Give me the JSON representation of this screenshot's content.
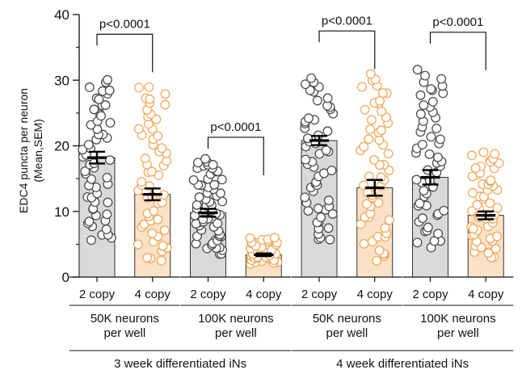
{
  "chart_data": {
    "type": "bar",
    "ylabel_lines": [
      "EDC4 puncta per neuron",
      "(Mean,SEM)"
    ],
    "ylim": [
      0,
      40
    ],
    "yticks": [
      0,
      10,
      20,
      30,
      40
    ],
    "colors": {
      "2 copy": {
        "bar": "#d9d9d9",
        "point_fill": "#ffffff",
        "point_edge": "#4d4d4d"
      },
      "4 copy": {
        "bar": "#fbe2c6",
        "point_fill": "#ffffff",
        "point_edge": "#f3a75b"
      }
    },
    "categories": [
      "2 copy",
      "4 copy",
      "2 copy",
      "4 copy",
      "2 copy",
      "4 copy",
      "2 copy",
      "4 copy"
    ],
    "values": [
      18.2,
      12.6,
      9.8,
      3.4,
      20.8,
      13.6,
      15.2,
      9.4
    ],
    "sem": [
      0.9,
      0.9,
      0.6,
      0.2,
      0.7,
      1.2,
      1.1,
      0.6
    ],
    "point_ranges": [
      [
        5.5,
        30.2
      ],
      [
        2.5,
        29.0
      ],
      [
        3.5,
        18.0
      ],
      [
        2.0,
        6.0
      ],
      [
        5.5,
        30.3
      ],
      [
        2.5,
        31.0
      ],
      [
        4.5,
        31.6
      ],
      [
        3.0,
        19.0
      ]
    ],
    "point_counts": [
      55,
      55,
      60,
      40,
      55,
      55,
      55,
      55
    ],
    "groups": [
      {
        "lines": [
          "50K neurons",
          "per well"
        ],
        "categories": [
          0,
          1
        ]
      },
      {
        "lines": [
          "100K neurons",
          "per well"
        ],
        "categories": [
          2,
          3
        ]
      },
      {
        "lines": [
          "50K neurons",
          "per well"
        ],
        "categories": [
          4,
          5
        ]
      },
      {
        "lines": [
          "100K neurons",
          "per well"
        ],
        "categories": [
          6,
          7
        ]
      }
    ],
    "experiments": [
      {
        "label": "3 week differentiated iNs",
        "categories": [
          0,
          3
        ]
      },
      {
        "label": "4 week differentiated iNs",
        "categories": [
          4,
          7
        ]
      }
    ],
    "comparisons": [
      {
        "pair": [
          0,
          1
        ],
        "label": "p<0.0001",
        "y": 37
      },
      {
        "pair": [
          2,
          3
        ],
        "label": "p<0.0001",
        "y": 21.3
      },
      {
        "pair": [
          4,
          5
        ],
        "label": "p<0.0001",
        "y": 37.5
      },
      {
        "pair": [
          6,
          7
        ],
        "label": "p<0.0001",
        "y": 37.3
      }
    ]
  }
}
